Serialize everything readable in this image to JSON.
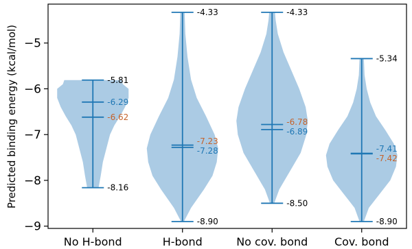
{
  "chart_data": {
    "type": "violin",
    "ylabel": "Predicted binding energy (kcal/mol)",
    "ylim": [
      -9.05,
      -4.15
    ],
    "yticks": [
      -9,
      -8,
      -7,
      -6,
      -5
    ],
    "ytick_labels": [
      "−9",
      "−8",
      "−7",
      "−6",
      "−5"
    ],
    "categories": [
      "No H-bond",
      "H-bond",
      "No cov. bond",
      "Cov. bond"
    ],
    "colors": {
      "body": "#a7c8e3",
      "line": "#1f77b4",
      "mean_label": "#1f77b4",
      "median_label": "#c5622a",
      "extreme_label": "#000000"
    },
    "series": [
      {
        "category": "No H-bond",
        "max": -5.81,
        "min": -8.16,
        "mean": -6.29,
        "median": -6.62,
        "labels": {
          "max": "-5.81",
          "min": "-8.16",
          "mean": "-6.29",
          "median": "-6.62"
        },
        "profile": [
          [
            -8.16,
            0.08
          ],
          [
            -7.9,
            0.11
          ],
          [
            -7.6,
            0.14
          ],
          [
            -7.3,
            0.19
          ],
          [
            -7.0,
            0.24
          ],
          [
            -6.8,
            0.3
          ],
          [
            -6.6,
            0.38
          ],
          [
            -6.4,
            0.45
          ],
          [
            -6.2,
            0.5
          ],
          [
            -6.0,
            0.5
          ],
          [
            -5.9,
            0.42
          ],
          [
            -5.81,
            0.4
          ]
        ]
      },
      {
        "category": "H-bond",
        "max": -4.33,
        "min": -8.9,
        "mean": -7.28,
        "median": -7.23,
        "labels": {
          "max": "-4.33",
          "min": "-8.90",
          "mean": "-7.28",
          "median": "-7.23"
        },
        "profile": [
          [
            -8.9,
            0.02
          ],
          [
            -8.6,
            0.12
          ],
          [
            -8.2,
            0.3
          ],
          [
            -7.9,
            0.42
          ],
          [
            -7.6,
            0.48
          ],
          [
            -7.3,
            0.5
          ],
          [
            -7.0,
            0.45
          ],
          [
            -6.6,
            0.33
          ],
          [
            -6.2,
            0.2
          ],
          [
            -5.8,
            0.12
          ],
          [
            -5.3,
            0.07
          ],
          [
            -4.8,
            0.04
          ],
          [
            -4.33,
            0.03
          ]
        ]
      },
      {
        "category": "No cov. bond",
        "max": -4.33,
        "min": -8.5,
        "mean": -6.89,
        "median": -6.78,
        "labels": {
          "max": "-4.33",
          "min": "-8.50",
          "mean": "-6.89",
          "median": "-6.78"
        },
        "profile": [
          [
            -8.5,
            0.03
          ],
          [
            -8.2,
            0.1
          ],
          [
            -7.8,
            0.25
          ],
          [
            -7.4,
            0.4
          ],
          [
            -7.0,
            0.48
          ],
          [
            -6.7,
            0.5
          ],
          [
            -6.4,
            0.47
          ],
          [
            -6.0,
            0.38
          ],
          [
            -5.6,
            0.27
          ],
          [
            -5.2,
            0.16
          ],
          [
            -4.8,
            0.08
          ],
          [
            -4.5,
            0.05
          ],
          [
            -4.33,
            0.04
          ]
        ]
      },
      {
        "category": "Cov. bond",
        "max": -5.34,
        "min": -8.9,
        "mean": -7.41,
        "median": -7.42,
        "labels": {
          "max": "-5.34",
          "min": "-8.90",
          "mean": "-7.41",
          "median": "-7.42"
        },
        "profile": [
          [
            -8.9,
            0.03
          ],
          [
            -8.6,
            0.1
          ],
          [
            -8.3,
            0.25
          ],
          [
            -8.0,
            0.4
          ],
          [
            -7.7,
            0.48
          ],
          [
            -7.45,
            0.5
          ],
          [
            -7.2,
            0.45
          ],
          [
            -6.9,
            0.33
          ],
          [
            -6.6,
            0.2
          ],
          [
            -6.3,
            0.12
          ],
          [
            -6.0,
            0.07
          ],
          [
            -5.7,
            0.04
          ],
          [
            -5.34,
            0.03
          ]
        ]
      }
    ]
  }
}
